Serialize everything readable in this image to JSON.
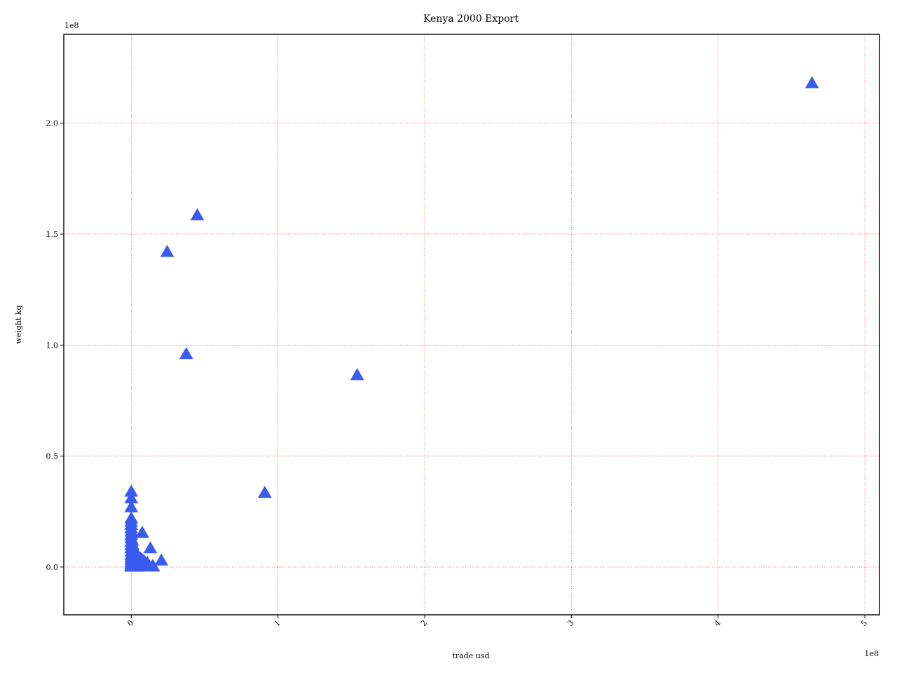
{
  "chart_data": {
    "type": "scatter",
    "title": "Kenya 2000 Export",
    "xlabel": "trade usd",
    "ylabel": "weight kg",
    "x_offset_label": "1e8",
    "y_offset_label": "1e8",
    "xlim": [
      -0.46,
      5.1
    ],
    "ylim": [
      -0.215,
      2.4
    ],
    "x_ticks": [
      0,
      1,
      2,
      3,
      4,
      5
    ],
    "y_ticks": [
      0.0,
      0.5,
      1.0,
      1.5,
      2.0
    ],
    "x_tick_labels": [
      "0",
      "1",
      "2",
      "3",
      "4",
      "5"
    ],
    "y_tick_labels": [
      "0.0",
      "0.5",
      "1.0",
      "1.5",
      "2.0"
    ],
    "grid": true,
    "marker": "triangle-up",
    "color": "#3a5bf0",
    "grid_color": "#ff0000",
    "series": [
      {
        "x": [
          4.64,
          0.45,
          0.245,
          0.375,
          1.54,
          0.91,
          0.0,
          0.0,
          0.0,
          0.0,
          0.0,
          0.0,
          0.0,
          0.0,
          0.0,
          0.0,
          0.0,
          0.0,
          0.0,
          0.0,
          0.0,
          0.0,
          0.0,
          0.0,
          0.0,
          0.0,
          0.0,
          0.005,
          0.01,
          0.01,
          0.015,
          0.02,
          0.025,
          0.03,
          0.04,
          0.05,
          0.06,
          0.07,
          0.08,
          0.01,
          0.02,
          0.03,
          0.04,
          0.06,
          0.08,
          0.1,
          0.12,
          0.15,
          0.02,
          0.05,
          0.075,
          0.13,
          0.205,
          0.145,
          0.1,
          0.11,
          0.09,
          0.06,
          0.03,
          0.02
        ],
        "y": [
          2.18,
          1.585,
          1.42,
          0.96,
          0.865,
          0.335,
          0.34,
          0.31,
          0.27,
          0.22,
          0.205,
          0.19,
          0.175,
          0.16,
          0.145,
          0.13,
          0.115,
          0.1,
          0.085,
          0.07,
          0.055,
          0.045,
          0.035,
          0.025,
          0.015,
          0.008,
          0.002,
          0.12,
          0.1,
          0.09,
          0.08,
          0.07,
          0.06,
          0.055,
          0.05,
          0.045,
          0.04,
          0.035,
          0.03,
          0.02,
          0.02,
          0.015,
          0.015,
          0.01,
          0.008,
          0.006,
          0.004,
          0.003,
          0.005,
          0.002,
          0.155,
          0.085,
          0.03,
          0.005,
          0.01,
          0.02,
          0.025,
          0.035,
          0.06,
          0.075
        ]
      }
    ]
  }
}
